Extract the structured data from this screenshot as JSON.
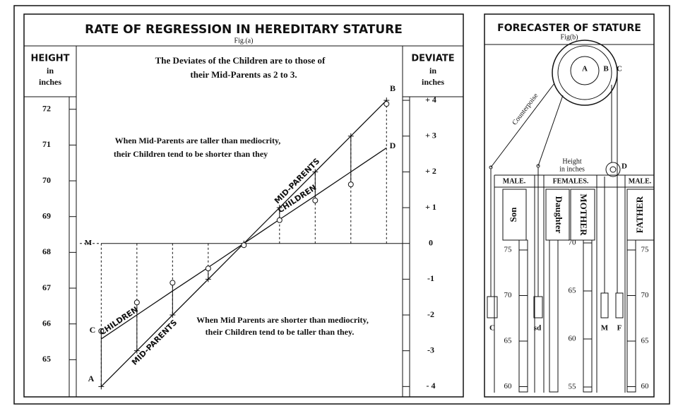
{
  "chart_data": {
    "type": "line",
    "title": "RATE OF REGRESSION IN HEREDITARY STATURE",
    "subtitle": "Fig.(a)",
    "ylabel": [
      "HEIGHT",
      "in",
      "inches"
    ],
    "y2label": [
      "DEVIATE",
      "in",
      "inches"
    ],
    "x": [
      -4,
      -3,
      -2,
      -1,
      0,
      1,
      2,
      3,
      4
    ],
    "xlim": [
      -4.7,
      4.45
    ],
    "ylim": [
      64.0,
      72.35
    ],
    "yticks": [
      65,
      66,
      67,
      68,
      69,
      70,
      71,
      72
    ],
    "y2lim": [
      -4.25,
      4.1
    ],
    "y2ticks": [
      {
        "value": 4,
        "label": "+ 4"
      },
      {
        "value": 3,
        "label": "+ 3"
      },
      {
        "value": 2,
        "label": "+ 2"
      },
      {
        "value": 1,
        "label": "+ 1"
      },
      0,
      -1,
      -2,
      -3,
      {
        "value": -4,
        "label": "- 4"
      }
    ],
    "reference_y": 68.25,
    "reference_label": "M",
    "series": [
      {
        "name": "MID-PARENTS",
        "color": "#111",
        "values": [
          64.25,
          65.25,
          66.25,
          67.25,
          68.25,
          69.25,
          70.25,
          71.25,
          72.25
        ]
      },
      {
        "name": "CHILDREN",
        "color": "#111",
        "values": [
          65.58,
          66.25,
          66.92,
          67.58,
          68.25,
          68.92,
          69.58,
          70.25,
          70.92
        ]
      },
      {
        "name": "Observed children",
        "color": "#111",
        "values": [
          65.8,
          66.6,
          67.15,
          67.55,
          68.2,
          68.9,
          69.45,
          69.9,
          72.15
        ]
      }
    ],
    "annotations": [
      "The Deviates of the Children are to those of",
      "their Mid-Parents as 2 to 3.",
      "When Mid-Parents are taller than mediocrity,",
      "their Children tend to be shorter than they",
      "When Mid Parents are shorter than mediocrity,",
      "their Children tend to be taller than they."
    ],
    "point_labels": [
      "A",
      "B",
      "C",
      "D"
    ]
  },
  "forecaster": {
    "title": "FORECASTER OF STATURE",
    "subtitle": "Fig(b)",
    "counterpoise": "Counterpoise",
    "pulley_labels": [
      "A",
      "B",
      "C",
      "D"
    ],
    "height_label": [
      "Height",
      "in inches"
    ],
    "column_heads": [
      "MALE.",
      "FEMALES.",
      "MALE."
    ],
    "scale_names": [
      "Son",
      "Daughter",
      "MOTHER",
      "FATHER"
    ],
    "son_scale": [
      75,
      70,
      65,
      60
    ],
    "female_scale": [
      70,
      65,
      60,
      55
    ],
    "father_scale": [
      75,
      70,
      65,
      60
    ],
    "slider_labels": [
      "C",
      "sd",
      "M",
      "F"
    ]
  }
}
